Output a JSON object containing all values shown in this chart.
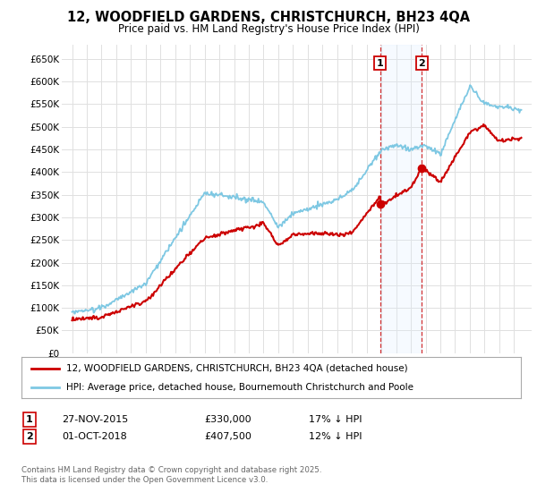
{
  "title": "12, WOODFIELD GARDENS, CHRISTCHURCH, BH23 4QA",
  "subtitle": "Price paid vs. HM Land Registry's House Price Index (HPI)",
  "yticks": [
    0,
    50000,
    100000,
    150000,
    200000,
    250000,
    300000,
    350000,
    400000,
    450000,
    500000,
    550000,
    600000,
    650000
  ],
  "ytick_labels": [
    "£0",
    "£50K",
    "£100K",
    "£150K",
    "£200K",
    "£250K",
    "£300K",
    "£350K",
    "£400K",
    "£450K",
    "£500K",
    "£550K",
    "£600K",
    "£650K"
  ],
  "hpi_color": "#7ec8e3",
  "price_color": "#cc0000",
  "sale1_year": 2015.917,
  "sale1_price": 330000,
  "sale2_year": 2018.75,
  "sale2_price": 407500,
  "legend_line1": "12, WOODFIELD GARDENS, CHRISTCHURCH, BH23 4QA (detached house)",
  "legend_line2": "HPI: Average price, detached house, Bournemouth Christchurch and Poole",
  "footnote": "Contains HM Land Registry data © Crown copyright and database right 2025.\nThis data is licensed under the Open Government Licence v3.0.",
  "background_color": "#ffffff",
  "plot_bg_color": "#ffffff",
  "shade_color": "#ddeeff"
}
